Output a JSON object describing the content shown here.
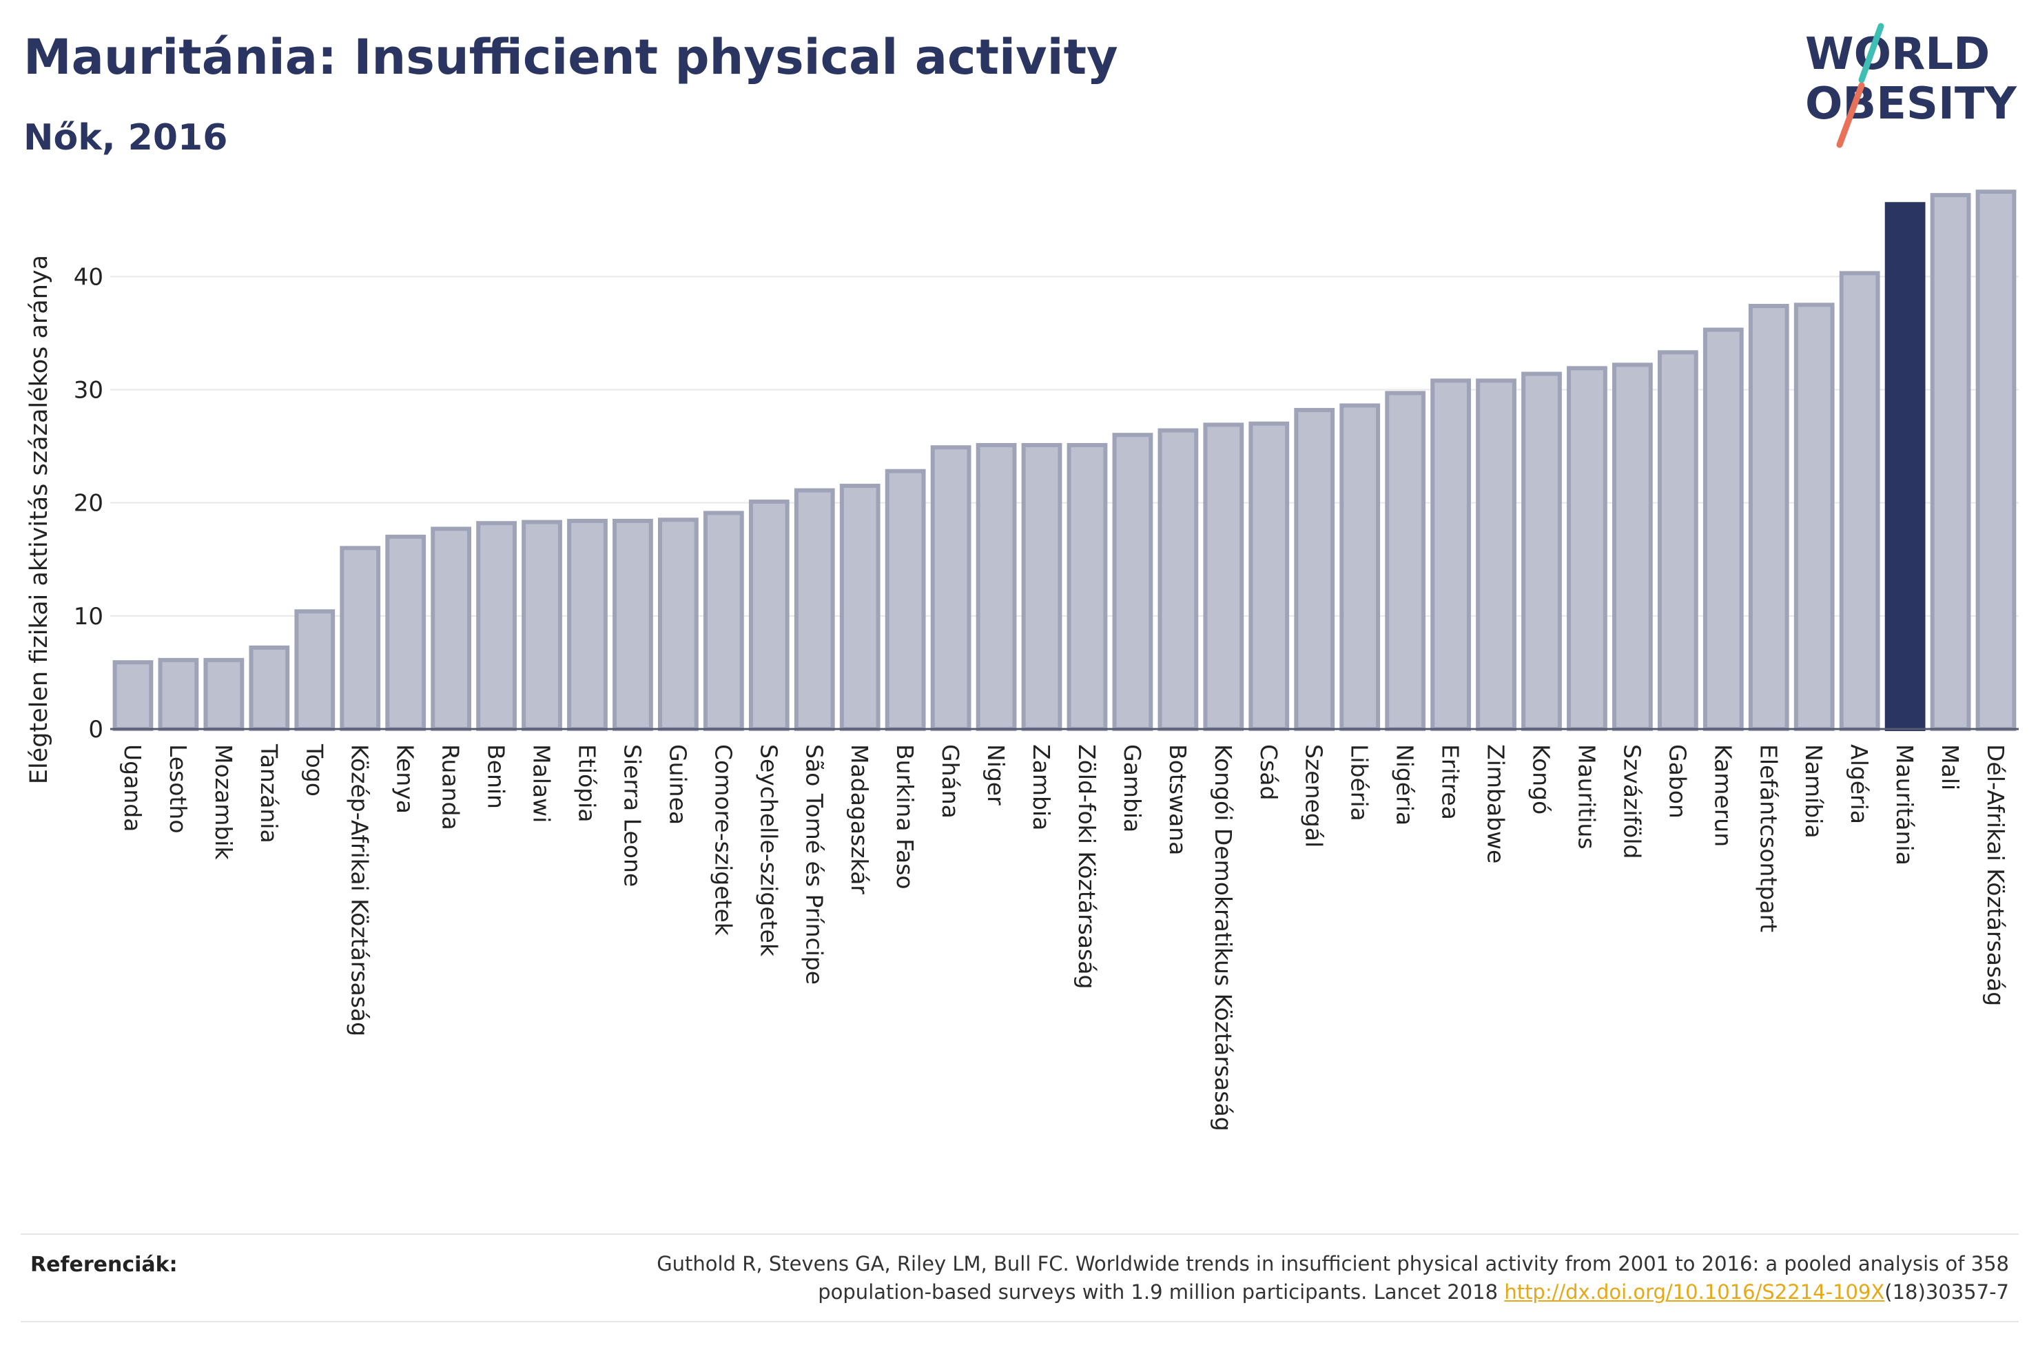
{
  "title": "Mauritánia: Insufficient physical activity",
  "subtitle": "Nők, 2016",
  "logo": {
    "line1": "WORLD",
    "line2": "OBESITY"
  },
  "colors": {
    "bar": "#bcc0cf",
    "bar_stroke": "#9ea3b8",
    "highlight": "#2b3561",
    "text": "#2b3561"
  },
  "chart_data": {
    "type": "bar",
    "ylabel": "Elégtelen fizikai aktivitás százalékos aránya",
    "ylim": [
      0,
      48
    ],
    "yticks": [
      0,
      10,
      20,
      30,
      40
    ],
    "grid": true,
    "highlight": "Mauritánia",
    "categories": [
      "Uganda",
      "Lesotho",
      "Mozambik",
      "Tanzánia",
      "Togo",
      "Közép-Afrikai Köztársaság",
      "Kenya",
      "Ruanda",
      "Benin",
      "Malawi",
      "Etiópia",
      "Sierra Leone",
      "Guinea",
      "Comore-szigetek",
      "Seychelle-szigetek",
      "São Tomé és Príncipe",
      "Madagaszkár",
      "Burkina Faso",
      "Ghána",
      "Niger",
      "Zambia",
      "Zöld-foki Köztársaság",
      "Gambia",
      "Botswana",
      "Kongói Demokratikus Köztársaság",
      "Csád",
      "Szenegál",
      "Libéria",
      "Nigéria",
      "Eritrea",
      "Zimbabwe",
      "Kongó",
      "Mauritius",
      "Szváziföld",
      "Gabon",
      "Kamerun",
      "Elefántcsontpart",
      "Namíbia",
      "Algéria",
      "Mauritánia",
      "Mali",
      "Dél-Afrikai Köztársaság"
    ],
    "values": [
      5.9,
      6.1,
      6.1,
      7.2,
      10.4,
      16.0,
      17.0,
      17.7,
      18.2,
      18.3,
      18.4,
      18.4,
      18.5,
      19.1,
      20.1,
      21.1,
      21.5,
      22.8,
      24.9,
      25.1,
      25.1,
      25.1,
      26.0,
      26.4,
      26.9,
      27.0,
      28.2,
      28.6,
      29.7,
      30.8,
      30.8,
      31.4,
      31.9,
      32.2,
      33.3,
      35.3,
      37.4,
      37.5,
      40.3,
      46.4,
      47.2,
      47.5
    ]
  },
  "references": {
    "label": "Referenciák:",
    "text_line1": "Guthold R, Stevens GA, Riley LM, Bull FC. Worldwide trends in insufficient physical activity from 2001 to 2016: a pooled analysis of 358",
    "text_line2_before": "population-based surveys with 1.9 million participants. Lancet 2018 ",
    "link_text": "http://dx.doi.org/10.1016/S2214-109X",
    "text_line2_after": "(18)30357-7"
  }
}
